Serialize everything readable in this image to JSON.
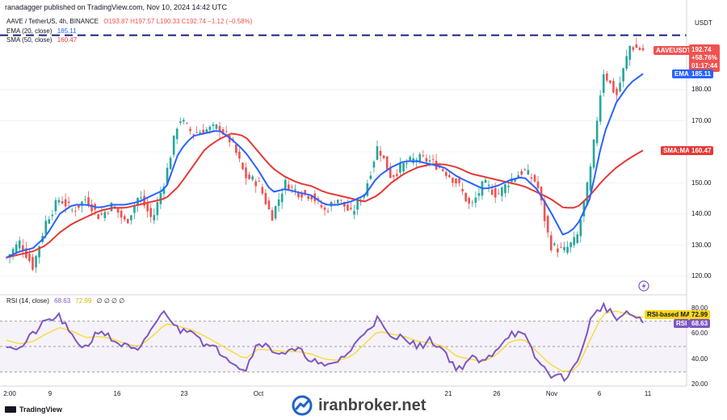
{
  "header": {
    "published": "ranadagger published on TradingView.com, Nov 10, 2024 14:42 UTC",
    "symbol": "AAVE / TetherUS, 4h, BINANCE",
    "ohlc": "O193.87 H197.57 L190.33 C192.74 −1.12 (−0.58%)"
  },
  "indicators": {
    "ema_label": "EMA (20, close)",
    "ema_value": "185.11",
    "sma_label": "SMA (50, close)",
    "sma_value": "160.47",
    "rsi_label": "RSI (14, close)",
    "rsi_value": "68.63",
    "rsi_ma_value": "72.99",
    "rsi_extra": "∅ ∅ ∅ ∅"
  },
  "axis": {
    "currency": "USDT",
    "price_ticks": [
      "180.00",
      "170.00",
      "160.00",
      "150.00",
      "140.00",
      "130.00",
      "120.00"
    ],
    "rsi_ticks": [
      "80.00",
      "60.00",
      "40.00",
      "20.00"
    ],
    "x_ticks": [
      "2:00",
      "9",
      "16",
      "23",
      "Oct",
      "21",
      "26",
      "Nov",
      "6",
      "11"
    ]
  },
  "price_tags": {
    "symbol": "AAVEUSDT",
    "price": "192.74",
    "change": "+58.76%",
    "countdown": "01:17:44",
    "ema_tag": "EMA",
    "ema_value": "185.11",
    "sma_tag": "SMA:MA",
    "sma_value": "160.47",
    "rsi_ma_tag": "RSI-based MA",
    "rsi_ma_value": "72.99",
    "rsi_tag": "RSI",
    "rsi_value": "68.63"
  },
  "colors": {
    "up": "#26a69a",
    "down": "#ef5350",
    "ema": "#2962ff",
    "sma": "#e53935",
    "rsi": "#7e57c2",
    "rsi_ma": "#f9d71c",
    "resistance": "#1a237e"
  },
  "watermark": "iranbroker.net",
  "footer": {
    "brand": "TradingView"
  },
  "chart_data": {
    "type": "candlestick",
    "symbol": "AAVE/USDT",
    "timeframe": "4h",
    "y_range": [
      115,
      200
    ],
    "resistance_level": 197.5,
    "price_close_path": [
      126,
      131,
      123,
      138,
      145,
      141,
      145,
      139,
      143,
      137,
      146,
      138,
      152,
      171,
      166,
      167,
      168,
      163,
      152,
      150,
      139,
      150,
      147,
      146,
      141,
      145,
      140,
      147,
      162,
      152,
      156,
      158,
      157,
      154,
      150,
      142,
      150,
      146,
      151,
      154,
      150,
      130,
      128,
      132,
      153,
      186,
      178,
      194,
      192.74
    ],
    "ema20_path": [
      126,
      128,
      129,
      133,
      140,
      143,
      143,
      142,
      143,
      143,
      144,
      146,
      148,
      160,
      165,
      166,
      167,
      164,
      160,
      154,
      147,
      148,
      147,
      146,
      143,
      143,
      144,
      146,
      152,
      155,
      157,
      157,
      156,
      155,
      152,
      150,
      148,
      149,
      151,
      152,
      148,
      141,
      133,
      136,
      145,
      165,
      176,
      182,
      185.11
    ],
    "sma50_path": [
      126,
      127,
      128,
      130,
      134,
      137,
      139,
      141,
      142,
      142,
      143,
      144,
      145,
      149,
      155,
      161,
      164,
      166,
      165,
      160,
      155,
      152,
      150,
      149,
      147,
      146,
      145,
      144,
      146,
      150,
      153,
      155,
      156,
      156,
      155,
      153,
      152,
      151,
      150,
      149,
      147,
      145,
      142,
      142,
      146,
      151,
      155,
      158,
      160.47
    ],
    "rsi_range": [
      15,
      90
    ],
    "rsi_levels": [
      70,
      50,
      30
    ],
    "rsi_path": [
      52,
      48,
      60,
      70,
      74,
      56,
      49,
      64,
      55,
      50,
      45,
      66,
      78,
      62,
      65,
      51,
      47,
      39,
      31,
      55,
      47,
      45,
      47,
      40,
      33,
      39,
      47,
      62,
      72,
      55,
      59,
      49,
      55,
      47,
      31,
      41,
      37,
      49,
      61,
      59,
      39,
      28,
      25,
      35,
      70,
      83,
      72,
      76,
      68.63
    ],
    "rsi_ma_path": [
      55,
      52,
      54,
      60,
      65,
      62,
      57,
      58,
      56,
      52,
      50,
      58,
      68,
      66,
      63,
      58,
      52,
      46,
      40,
      48,
      47,
      46,
      46,
      44,
      40,
      39,
      42,
      52,
      62,
      60,
      58,
      54,
      53,
      50,
      42,
      40,
      38,
      44,
      54,
      56,
      46,
      36,
      30,
      32,
      55,
      76,
      78,
      75,
      72.99
    ]
  }
}
